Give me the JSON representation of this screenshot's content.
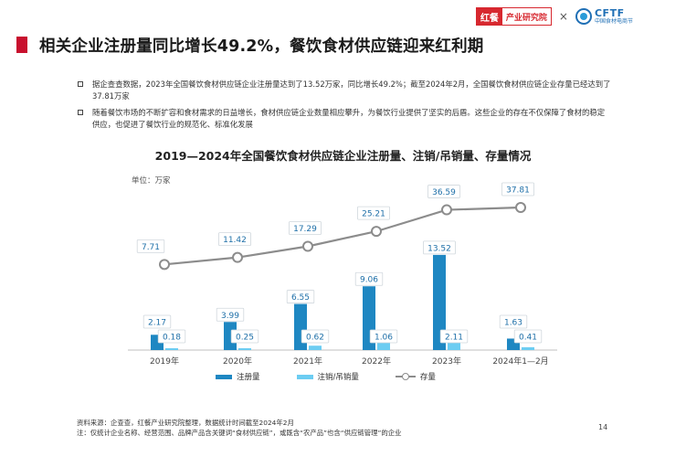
{
  "header": {
    "logo_hc_text": "红餐",
    "logo_hc_sub": "产业研究院",
    "logo_separator": "×",
    "logo_cftf": "CFTF",
    "logo_cftf_sub": "中国食材电商节"
  },
  "title": "相关企业注册量同比增长49.2%，餐饮食材供应链迎来红利期",
  "bullets": [
    "据企查查数据，2023年全国餐饮食材供应链企业注册量达到了13.52万家，同比增长49.2%；截至2024年2月，全国餐饮食材供应链企业存量已经达到了37.81万家",
    "随着餐饮市场的不断扩容和食材需求的日益增长，食材供应链企业数量相应攀升，为餐饮行业提供了坚实的后盾。这些企业的存在不仅保障了食材的稳定供应，也促进了餐饮行业的规范化、标准化发展"
  ],
  "chart_data": {
    "type": "bar",
    "title": "2019—2024年全国餐饮食材供应链企业注册量、注销/吊销量、存量情况",
    "unit": "单位：万家",
    "categories": [
      "2019年",
      "2020年",
      "2021年",
      "2022年",
      "2023年",
      "2024年1—2月"
    ],
    "series": [
      {
        "name": "注册量",
        "kind": "bar",
        "color": "#1e87c2",
        "values": [
          2.17,
          3.99,
          6.55,
          9.06,
          13.52,
          1.63
        ],
        "labels": [
          "2.17",
          "3.99",
          "6.55",
          "9.06",
          "13.52",
          "1.63"
        ]
      },
      {
        "name": "注销/吊销量",
        "kind": "bar",
        "color": "#6ccdf2",
        "values": [
          0.18,
          0.25,
          0.62,
          1.06,
          2.11,
          0.41
        ],
        "labels": [
          "0.18",
          "0.25",
          "0.62",
          "1.06",
          "2.11",
          "0.41"
        ]
      },
      {
        "name": "存量",
        "kind": "line",
        "color": "#8c8c8c",
        "values": [
          7.71,
          11.42,
          17.29,
          25.21,
          36.59,
          37.81
        ],
        "labels": [
          "7.71",
          "11.42",
          "17.29",
          "25.21",
          "36.59",
          "37.81"
        ]
      }
    ],
    "legend_position": "bottom",
    "grid": false
  },
  "footer": {
    "source": "资料来源：企查查，红餐产业研究院整理，数据统计时间截至2024年2月",
    "note": "注：仅统计企业名称、经营范围、品牌产品含关键词“食材供应链”，或既含“农产品”也含“供应链管理”的企业",
    "page_number": "14"
  }
}
